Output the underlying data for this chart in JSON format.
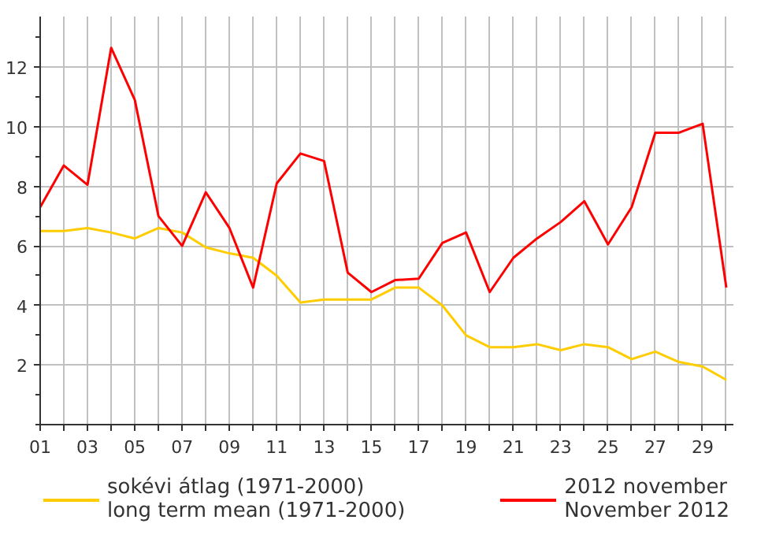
{
  "chart_data": {
    "type": "line",
    "x": [
      1,
      2,
      3,
      4,
      5,
      6,
      7,
      8,
      9,
      10,
      11,
      12,
      13,
      14,
      15,
      16,
      17,
      18,
      19,
      20,
      21,
      22,
      23,
      24,
      25,
      26,
      27,
      28,
      29,
      30
    ],
    "series": [
      {
        "name": "sokévi átlag (1971-2000)\nlong term mean (1971-2000)",
        "color": "#ffcc00",
        "values": [
          6.5,
          6.5,
          6.6,
          6.45,
          6.25,
          6.6,
          6.45,
          5.95,
          5.75,
          5.6,
          5.0,
          4.1,
          4.2,
          4.2,
          4.2,
          4.6,
          4.6,
          4.0,
          3.0,
          2.6,
          2.6,
          2.7,
          2.5,
          2.7,
          2.6,
          2.2,
          2.45,
          2.1,
          1.95,
          1.5
        ]
      },
      {
        "name": "2012 november\nNovember 2012",
        "color": "#ff0000",
        "values": [
          7.3,
          8.7,
          8.05,
          12.65,
          10.9,
          7.0,
          6.0,
          7.8,
          6.6,
          4.6,
          8.1,
          9.1,
          8.85,
          5.1,
          4.45,
          4.85,
          4.9,
          6.1,
          6.45,
          4.45,
          5.6,
          6.25,
          6.8,
          7.5,
          6.05,
          7.3,
          9.8,
          9.8,
          10.1,
          4.6
        ]
      }
    ],
    "xlim": [
      1,
      30.3
    ],
    "ylim": [
      0,
      13.7
    ],
    "xticks": [
      {
        "value": 1,
        "label": "01"
      },
      {
        "value": 2,
        "label": null
      },
      {
        "value": 3,
        "label": "03"
      },
      {
        "value": 4,
        "label": null
      },
      {
        "value": 5,
        "label": "05"
      },
      {
        "value": 6,
        "label": null
      },
      {
        "value": 7,
        "label": "07"
      },
      {
        "value": 8,
        "label": null
      },
      {
        "value": 9,
        "label": "09"
      },
      {
        "value": 10,
        "label": null
      },
      {
        "value": 11,
        "label": "11"
      },
      {
        "value": 12,
        "label": null
      },
      {
        "value": 13,
        "label": "13"
      },
      {
        "value": 14,
        "label": null
      },
      {
        "value": 15,
        "label": "15"
      },
      {
        "value": 16,
        "label": null
      },
      {
        "value": 17,
        "label": "17"
      },
      {
        "value": 18,
        "label": null
      },
      {
        "value": 19,
        "label": "19"
      },
      {
        "value": 20,
        "label": null
      },
      {
        "value": 21,
        "label": "21"
      },
      {
        "value": 22,
        "label": null
      },
      {
        "value": 23,
        "label": "23"
      },
      {
        "value": 24,
        "label": null
      },
      {
        "value": 25,
        "label": "25"
      },
      {
        "value": 26,
        "label": null
      },
      {
        "value": 27,
        "label": "27"
      },
      {
        "value": 28,
        "label": null
      },
      {
        "value": 29,
        "label": "29"
      },
      {
        "value": 30,
        "label": null
      }
    ],
    "yticks": [
      2,
      4,
      6,
      8,
      10,
      12
    ],
    "grid": true,
    "legend": "bottom",
    "marker": "none",
    "line_style": "solid"
  }
}
